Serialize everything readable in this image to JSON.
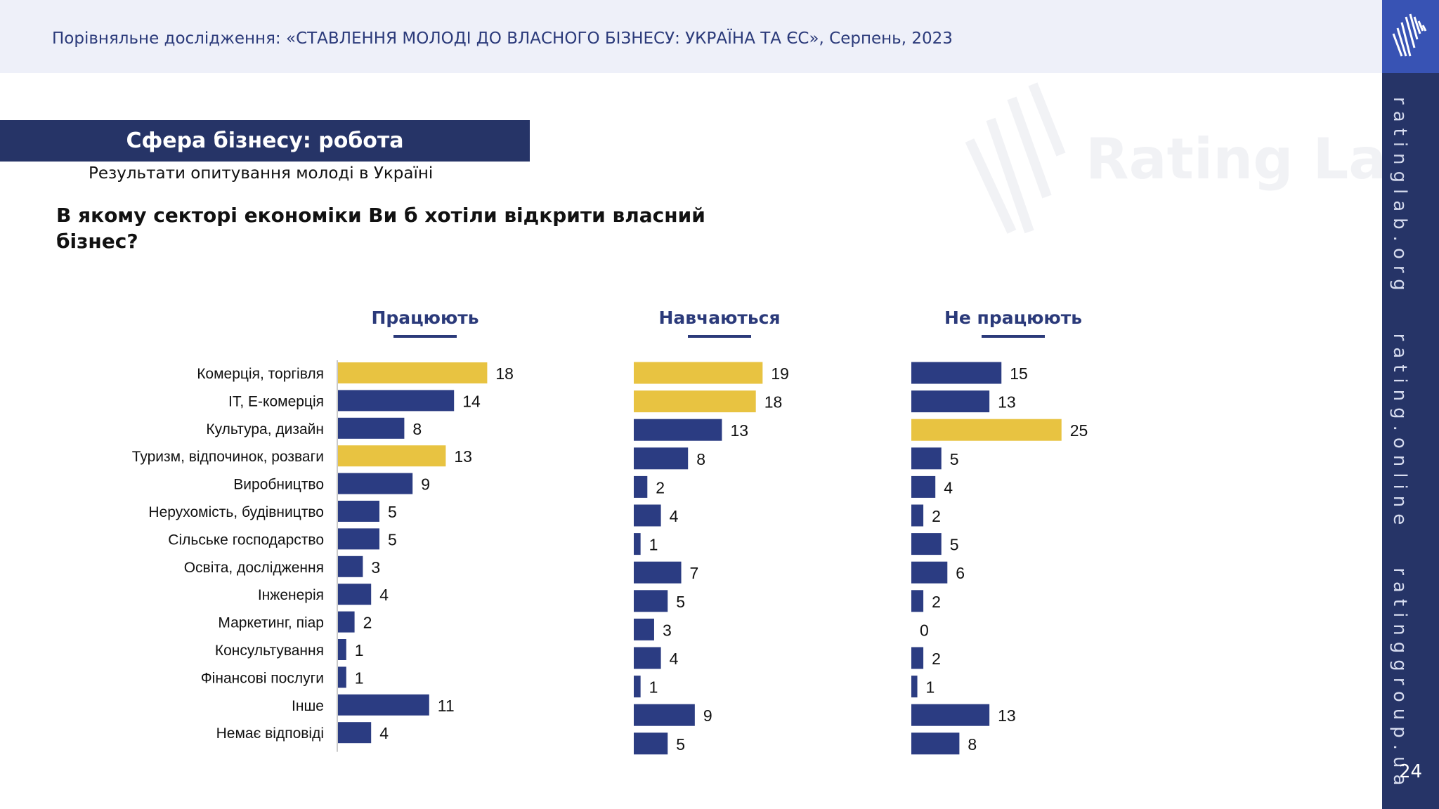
{
  "header": {
    "text": "Порівняльне дослідження: «СТАВЛЕННЯ МОЛОДІ ДО ВЛАСНОГО БІЗНЕСУ: УКРАЇНА ТА ЄС», Серпень, 2023"
  },
  "sidebar": {
    "links": [
      "ratinglab.org",
      "rating.online",
      "ratinggroup.ua"
    ],
    "page_number": "24"
  },
  "watermark": {
    "text": "Rating Lab"
  },
  "slide": {
    "title": "Сфера бізнесу: робота",
    "subtitle": "Результати опитування молоді в Україні",
    "question": "В якому секторі економіки Ви б хотіли відкрити власний бізнес?"
  },
  "colors": {
    "highlight": "#e8c341",
    "bar": "#2b3c82",
    "heading": "#2b3a7a"
  },
  "chart_data": {
    "type": "bar",
    "orientation": "horizontal",
    "categories": [
      "Комерція, торгівля",
      "IT, Е-комерція",
      "Культура, дизайн",
      "Туризм, відпочинок, розваги",
      "Виробництво",
      "Нерухомість, будівництво",
      "Сільське господарство",
      "Освіта, дослідження",
      "Інженерія",
      "Маркетинг, піар",
      "Консультування",
      "Фінансові послуги",
      "Інше",
      "Немає відповіді"
    ],
    "series": [
      {
        "name": "Працюють",
        "values": [
          18,
          14,
          8,
          13,
          9,
          5,
          5,
          3,
          4,
          2,
          1,
          1,
          11,
          4
        ],
        "highlight": [
          0,
          3
        ]
      },
      {
        "name": "Навчаються",
        "values": [
          19,
          18,
          13,
          8,
          2,
          4,
          1,
          7,
          5,
          3,
          4,
          1,
          9,
          5
        ],
        "highlight": [
          0,
          1
        ]
      },
      {
        "name": "Не працюють",
        "values": [
          15,
          13,
          25,
          5,
          4,
          2,
          5,
          6,
          2,
          0,
          2,
          1,
          13,
          8
        ],
        "highlight": [
          2
        ]
      }
    ]
  }
}
